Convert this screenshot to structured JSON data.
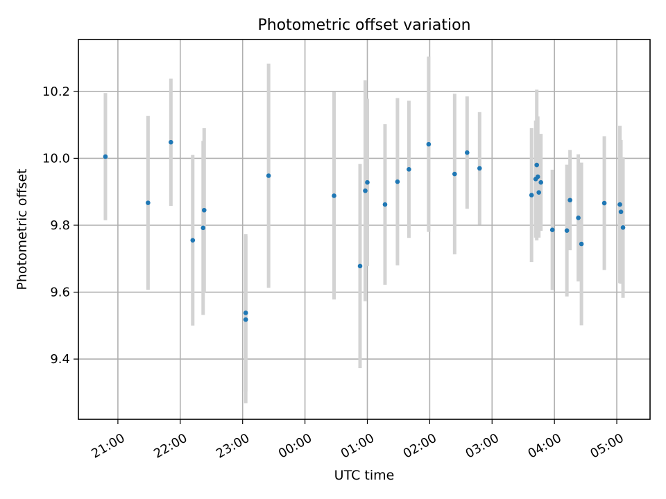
{
  "chart_data": {
    "type": "scatter",
    "title": "Photometric offset variation",
    "xlabel": "UTC time",
    "ylabel": "Photometric offset",
    "x_tick_labels": [
      "21:00",
      "22:00",
      "23:00",
      "00:00",
      "01:00",
      "02:00",
      "03:00",
      "04:00",
      "05:00"
    ],
    "x_tick_times": [
      "21:00",
      "22:00",
      "23:00",
      "00:00",
      "01:00",
      "02:00",
      "03:00",
      "04:00",
      "05:00"
    ],
    "y_tick_labels": [
      "9.4",
      "9.6",
      "9.8",
      "10.0",
      "10.2"
    ],
    "y_ticks": [
      9.4,
      9.6,
      9.8,
      10.0,
      10.2
    ],
    "xlim": [
      "20:22",
      "05:32"
    ],
    "ylim": [
      9.22,
      10.355
    ],
    "grid": true,
    "colors": {
      "marker": "#1f77b4",
      "errorbar": "#d3d3d3"
    },
    "points": [
      {
        "time": "20:48",
        "y": 10.005,
        "err": 0.19
      },
      {
        "time": "21:29",
        "y": 9.867,
        "err": 0.26
      },
      {
        "time": "21:51",
        "y": 10.048,
        "err": 0.19
      },
      {
        "time": "22:12",
        "y": 9.755,
        "err": 0.255
      },
      {
        "time": "22:22",
        "y": 9.792,
        "err": 0.26
      },
      {
        "time": "22:23",
        "y": 9.845,
        "err": 0.245
      },
      {
        "time": "23:03",
        "y": 9.538,
        "err": 0.235
      },
      {
        "time": "23:03",
        "y": 9.518,
        "err": 0.25
      },
      {
        "time": "23:25",
        "y": 9.948,
        "err": 0.335
      },
      {
        "time": "00:28",
        "y": 9.888,
        "err": 0.31
      },
      {
        "time": "00:53",
        "y": 9.678,
        "err": 0.305
      },
      {
        "time": "00:58",
        "y": 9.903,
        "err": 0.33
      },
      {
        "time": "01:00",
        "y": 9.928,
        "err": 0.25
      },
      {
        "time": "01:17",
        "y": 9.862,
        "err": 0.24
      },
      {
        "time": "01:29",
        "y": 9.93,
        "err": 0.25
      },
      {
        "time": "01:40",
        "y": 9.967,
        "err": 0.205
      },
      {
        "time": "01:59",
        "y": 10.042,
        "err": 0.262
      },
      {
        "time": "02:24",
        "y": 9.953,
        "err": 0.24
      },
      {
        "time": "02:36",
        "y": 10.017,
        "err": 0.168
      },
      {
        "time": "02:48",
        "y": 9.97,
        "err": 0.168
      },
      {
        "time": "03:38",
        "y": 9.89,
        "err": 0.2
      },
      {
        "time": "03:42",
        "y": 9.938,
        "err": 0.175
      },
      {
        "time": "03:43",
        "y": 9.98,
        "err": 0.225
      },
      {
        "time": "03:44",
        "y": 9.945,
        "err": 0.18
      },
      {
        "time": "03:45",
        "y": 9.898,
        "err": 0.135
      },
      {
        "time": "03:47",
        "y": 9.928,
        "err": 0.145
      },
      {
        "time": "03:58",
        "y": 9.786,
        "err": 0.18
      },
      {
        "time": "04:12",
        "y": 9.784,
        "err": 0.197
      },
      {
        "time": "04:15",
        "y": 9.875,
        "err": 0.15
      },
      {
        "time": "04:23",
        "y": 9.822,
        "err": 0.19
      },
      {
        "time": "04:26",
        "y": 9.744,
        "err": 0.243
      },
      {
        "time": "04:48",
        "y": 9.866,
        "err": 0.2
      },
      {
        "time": "05:03",
        "y": 9.862,
        "err": 0.235
      },
      {
        "time": "05:04",
        "y": 9.84,
        "err": 0.215
      },
      {
        "time": "05:06",
        "y": 9.793,
        "err": 0.21
      }
    ]
  }
}
